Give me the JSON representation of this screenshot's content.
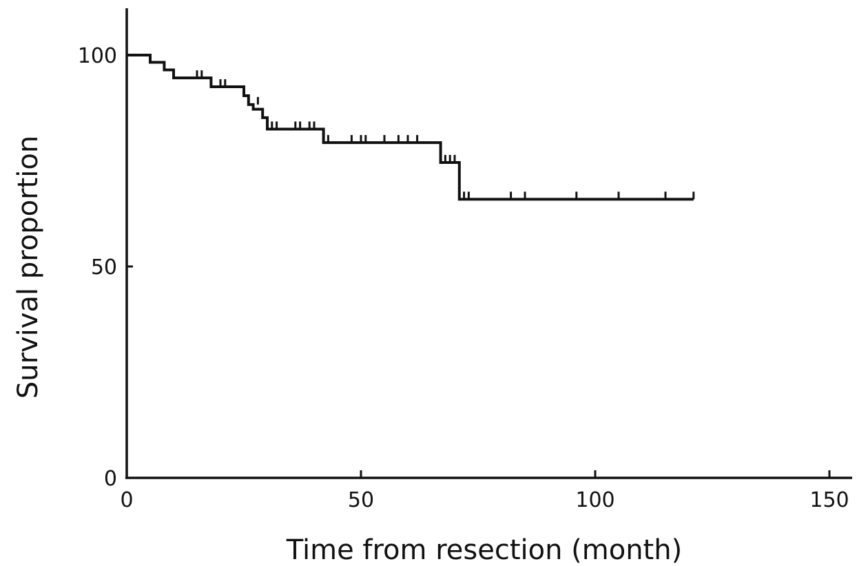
{
  "chart_data": {
    "type": "line",
    "xlabel": "Time from resection (month)",
    "ylabel": "Survival proportion",
    "xlim": [
      0,
      155
    ],
    "ylim": [
      0,
      113
    ],
    "x_ticks": [
      0,
      50,
      100,
      150
    ],
    "x_tick_labels": [
      "0",
      "50",
      "100",
      "150"
    ],
    "y_ticks": [
      0,
      50,
      100
    ],
    "y_tick_labels": [
      "0",
      "50",
      "100"
    ],
    "grid": false,
    "legend": "none",
    "line_color": "#111111",
    "series": [
      {
        "step_points": [
          [
            0,
            100
          ],
          [
            5,
            98.3
          ],
          [
            8,
            96.5
          ],
          [
            10,
            94.6
          ],
          [
            18,
            92.5
          ],
          [
            25,
            90.4
          ],
          [
            26,
            88.3
          ],
          [
            27,
            87.2
          ],
          [
            29,
            85.2
          ],
          [
            30,
            82.5
          ],
          [
            42,
            79.3
          ],
          [
            67,
            74.6
          ],
          [
            71,
            65.9
          ],
          [
            121,
            65.9
          ]
        ],
        "censor_marks": [
          [
            15,
            94.6
          ],
          [
            16,
            94.6
          ],
          [
            20,
            92.5
          ],
          [
            21,
            92.5
          ],
          [
            28,
            88.3
          ],
          [
            31,
            82.5
          ],
          [
            32,
            82.5
          ],
          [
            36,
            82.5
          ],
          [
            37,
            82.5
          ],
          [
            39,
            82.5
          ],
          [
            40,
            82.5
          ],
          [
            43,
            79.3
          ],
          [
            48,
            79.3
          ],
          [
            50,
            79.3
          ],
          [
            51,
            79.3
          ],
          [
            55,
            79.3
          ],
          [
            58,
            79.3
          ],
          [
            60,
            79.3
          ],
          [
            62,
            79.3
          ],
          [
            68,
            74.6
          ],
          [
            69,
            74.6
          ],
          [
            70,
            74.6
          ],
          [
            72,
            65.9
          ],
          [
            73,
            65.9
          ],
          [
            82,
            65.9
          ],
          [
            85,
            65.9
          ],
          [
            96,
            65.9
          ],
          [
            105,
            65.9
          ],
          [
            115,
            65.9
          ],
          [
            121,
            65.9
          ]
        ]
      }
    ]
  }
}
